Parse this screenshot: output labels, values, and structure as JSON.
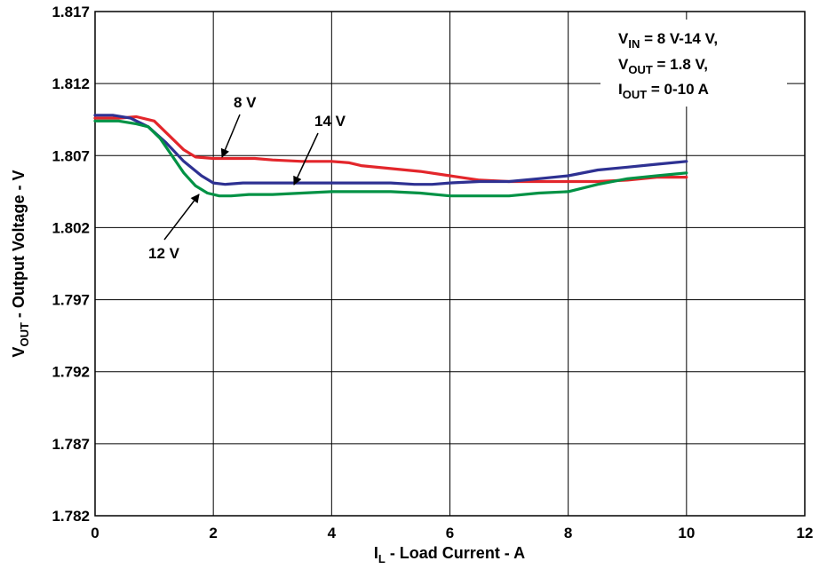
{
  "chart_data": {
    "type": "line",
    "xlabel": {
      "main": "I",
      "sub": "L",
      "rest": " - Load Current - A"
    },
    "ylabel": {
      "main": "V",
      "sub": "OUT",
      "rest": " - Output Voltage - V"
    },
    "xlim": [
      0,
      12
    ],
    "ylim": [
      1.782,
      1.817
    ],
    "xticks": [
      "0",
      "2",
      "4",
      "6",
      "8",
      "10",
      "12"
    ],
    "yticks": [
      "1.782",
      "1.787",
      "1.792",
      "1.797",
      "1.802",
      "1.807",
      "1.812",
      "1.817"
    ],
    "grid": true,
    "legend": "none",
    "info_box": [
      {
        "main": "V",
        "sub": "IN",
        "rest": " = 8 V-14 V,"
      },
      {
        "main": "V",
        "sub": "OUT",
        "rest": " = 1.8 V,"
      },
      {
        "main": "I",
        "sub": "OUT",
        "rest": " = 0-10 A"
      }
    ],
    "annotations": [
      {
        "label": "8 V",
        "series": "8 V"
      },
      {
        "label": "14 V",
        "series": "14 V"
      },
      {
        "label": "12 V",
        "series": "12 V"
      }
    ],
    "series": [
      {
        "name": "8 V",
        "color": "#e3262b",
        "x": [
          0,
          0.4,
          0.7,
          1.0,
          1.3,
          1.5,
          1.7,
          2.0,
          2.4,
          2.7,
          3.0,
          3.5,
          4.0,
          4.3,
          4.5,
          5.0,
          5.5,
          6.0,
          6.5,
          7.0,
          7.5,
          8.0,
          8.5,
          9.0,
          9.5,
          10.0
        ],
        "y": [
          1.8096,
          1.8096,
          1.8097,
          1.8094,
          1.8082,
          1.8074,
          1.8069,
          1.8068,
          1.8068,
          1.8068,
          1.8067,
          1.8066,
          1.8066,
          1.8065,
          1.8063,
          1.8061,
          1.8059,
          1.8056,
          1.8053,
          1.8052,
          1.8052,
          1.8052,
          1.8052,
          1.8053,
          1.8055,
          1.8055
        ]
      },
      {
        "name": "14 V",
        "color": "#2e3192",
        "x": [
          0,
          0.3,
          0.6,
          0.9,
          1.2,
          1.5,
          1.8,
          2.0,
          2.2,
          2.5,
          3.0,
          4.0,
          5.0,
          5.4,
          5.7,
          6.0,
          6.5,
          7.0,
          7.5,
          8.0,
          8.5,
          9.0,
          9.5,
          10.0
        ],
        "y": [
          1.8098,
          1.8098,
          1.8096,
          1.809,
          1.8079,
          1.8066,
          1.8056,
          1.8051,
          1.805,
          1.8051,
          1.8051,
          1.8051,
          1.8051,
          1.805,
          1.805,
          1.8051,
          1.8052,
          1.8052,
          1.8054,
          1.8056,
          1.806,
          1.8062,
          1.8064,
          1.8066
        ]
      },
      {
        "name": "12 V",
        "color": "#009245",
        "x": [
          0,
          0.4,
          0.7,
          0.9,
          1.1,
          1.3,
          1.5,
          1.7,
          1.9,
          2.1,
          2.3,
          2.6,
          3.0,
          3.5,
          4.0,
          5.0,
          5.5,
          6.0,
          6.5,
          7.0,
          7.5,
          8.0,
          8.5,
          9.0,
          9.5,
          10.0
        ],
        "y": [
          1.8094,
          1.8094,
          1.8092,
          1.809,
          1.8082,
          1.807,
          1.8058,
          1.8049,
          1.8044,
          1.8042,
          1.8042,
          1.8043,
          1.8043,
          1.8044,
          1.8045,
          1.8045,
          1.8044,
          1.8042,
          1.8042,
          1.8042,
          1.8044,
          1.8045,
          1.805,
          1.8054,
          1.8056,
          1.8058
        ]
      }
    ]
  }
}
